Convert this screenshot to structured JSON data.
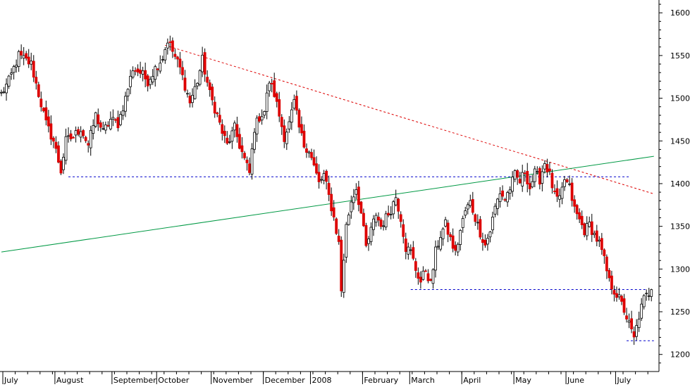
{
  "chart_data": {
    "type": "candlestick",
    "title": "",
    "xlabel": "",
    "ylabel": "",
    "ylim": [
      1180,
      1615
    ],
    "xlim": [
      0,
      263
    ],
    "y_axis_position": "right",
    "grid": false,
    "y_ticks": [
      1200,
      1250,
      1300,
      1350,
      1400,
      1450,
      1500,
      1550,
      1600
    ],
    "x_ticks": [
      {
        "label": "July",
        "x": 0
      },
      {
        "label": "August",
        "x": 21
      },
      {
        "label": "September",
        "x": 44
      },
      {
        "label": "October",
        "x": 62
      },
      {
        "label": "November",
        "x": 84
      },
      {
        "label": "December",
        "x": 105
      },
      {
        "label": "2008",
        "x": 124
      },
      {
        "label": "February",
        "x": 145
      },
      {
        "label": "March",
        "x": 164
      },
      {
        "label": "April",
        "x": 185
      },
      {
        "label": "May",
        "x": 206
      },
      {
        "label": "June",
        "x": 227
      },
      {
        "label": "July",
        "x": 247
      }
    ],
    "colors": {
      "up": "#ffffff",
      "down": "#dd0000",
      "wick": "#000000",
      "axis": "#000000",
      "resistance_line": "#dd0000",
      "support_line": "#0000cc",
      "trend_line": "#009944"
    },
    "anchors": [
      [
        0,
        1505
      ],
      [
        3,
        1520
      ],
      [
        7,
        1550
      ],
      [
        12,
        1540
      ],
      [
        15,
        1505
      ],
      [
        18,
        1470
      ],
      [
        21,
        1450
      ],
      [
        24,
        1415
      ],
      [
        26,
        1450
      ],
      [
        29,
        1455
      ],
      [
        32,
        1465
      ],
      [
        35,
        1445
      ],
      [
        38,
        1480
      ],
      [
        41,
        1460
      ],
      [
        44,
        1475
      ],
      [
        47,
        1470
      ],
      [
        50,
        1500
      ],
      [
        53,
        1535
      ],
      [
        56,
        1530
      ],
      [
        59,
        1520
      ],
      [
        62,
        1535
      ],
      [
        65,
        1548
      ],
      [
        67,
        1568
      ],
      [
        69,
        1555
      ],
      [
        72,
        1535
      ],
      [
        74,
        1515
      ],
      [
        76,
        1495
      ],
      [
        79,
        1520
      ],
      [
        81,
        1545
      ],
      [
        84,
        1505
      ],
      [
        87,
        1480
      ],
      [
        89,
        1460
      ],
      [
        91,
        1445
      ],
      [
        94,
        1465
      ],
      [
        96,
        1445
      ],
      [
        98,
        1428
      ],
      [
        100,
        1412
      ],
      [
        102,
        1465
      ],
      [
        104,
        1478
      ],
      [
        106,
        1485
      ],
      [
        108,
        1520
      ],
      [
        110,
        1505
      ],
      [
        112,
        1480
      ],
      [
        114,
        1455
      ],
      [
        116,
        1470
      ],
      [
        118,
        1495
      ],
      [
        120,
        1465
      ],
      [
        122,
        1445
      ],
      [
        124,
        1440
      ],
      [
        126,
        1420
      ],
      [
        128,
        1400
      ],
      [
        130,
        1410
      ],
      [
        132,
        1385
      ],
      [
        134,
        1360
      ],
      [
        136,
        1330
      ],
      [
        137,
        1275
      ],
      [
        139,
        1350
      ],
      [
        141,
        1380
      ],
      [
        143,
        1395
      ],
      [
        145,
        1365
      ],
      [
        147,
        1325
      ],
      [
        149,
        1345
      ],
      [
        151,
        1365
      ],
      [
        153,
        1350
      ],
      [
        155,
        1360
      ],
      [
        157,
        1370
      ],
      [
        159,
        1385
      ],
      [
        161,
        1360
      ],
      [
        163,
        1325
      ],
      [
        165,
        1320
      ],
      [
        167,
        1300
      ],
      [
        169,
        1285
      ],
      [
        171,
        1300
      ],
      [
        173,
        1282
      ],
      [
        175,
        1320
      ],
      [
        177,
        1340
      ],
      [
        179,
        1352
      ],
      [
        181,
        1335
      ],
      [
        183,
        1318
      ],
      [
        185,
        1345
      ],
      [
        187,
        1368
      ],
      [
        189,
        1378
      ],
      [
        191,
        1360
      ],
      [
        193,
        1343
      ],
      [
        195,
        1328
      ],
      [
        197,
        1345
      ],
      [
        199,
        1372
      ],
      [
        201,
        1390
      ],
      [
        203,
        1382
      ],
      [
        205,
        1395
      ],
      [
        207,
        1410
      ],
      [
        209,
        1402
      ],
      [
        211,
        1415
      ],
      [
        213,
        1395
      ],
      [
        215,
        1412
      ],
      [
        217,
        1405
      ],
      [
        219,
        1425
      ],
      [
        221,
        1410
      ],
      [
        223,
        1385
      ],
      [
        225,
        1380
      ],
      [
        227,
        1405
      ],
      [
        229,
        1395
      ],
      [
        231,
        1370
      ],
      [
        233,
        1357
      ],
      [
        235,
        1345
      ],
      [
        237,
        1352
      ],
      [
        239,
        1340
      ],
      [
        241,
        1330
      ],
      [
        243,
        1310
      ],
      [
        245,
        1285
      ],
      [
        247,
        1275
      ],
      [
        249,
        1265
      ],
      [
        251,
        1252
      ],
      [
        253,
        1235
      ],
      [
        255,
        1218
      ],
      [
        257,
        1245
      ],
      [
        259,
        1265
      ],
      [
        261,
        1272
      ],
      [
        262,
        1280
      ]
    ],
    "trend_lines": [
      {
        "kind": "resistance",
        "style": "dashed",
        "x1": 66,
        "y1": 1562,
        "x2": 263,
        "y2": 1388
      },
      {
        "kind": "trend",
        "style": "solid",
        "x1": 0,
        "y1": 1320,
        "x2": 263,
        "y2": 1432
      },
      {
        "kind": "support",
        "style": "dashed",
        "x1": 27,
        "y1": 1408,
        "x2": 253,
        "y2": 1408
      },
      {
        "kind": "support",
        "style": "dashed",
        "x1": 165,
        "y1": 1276,
        "x2": 260,
        "y2": 1276
      },
      {
        "kind": "support",
        "style": "dashed",
        "x1": 252,
        "y1": 1216,
        "x2": 263,
        "y2": 1216
      }
    ]
  }
}
